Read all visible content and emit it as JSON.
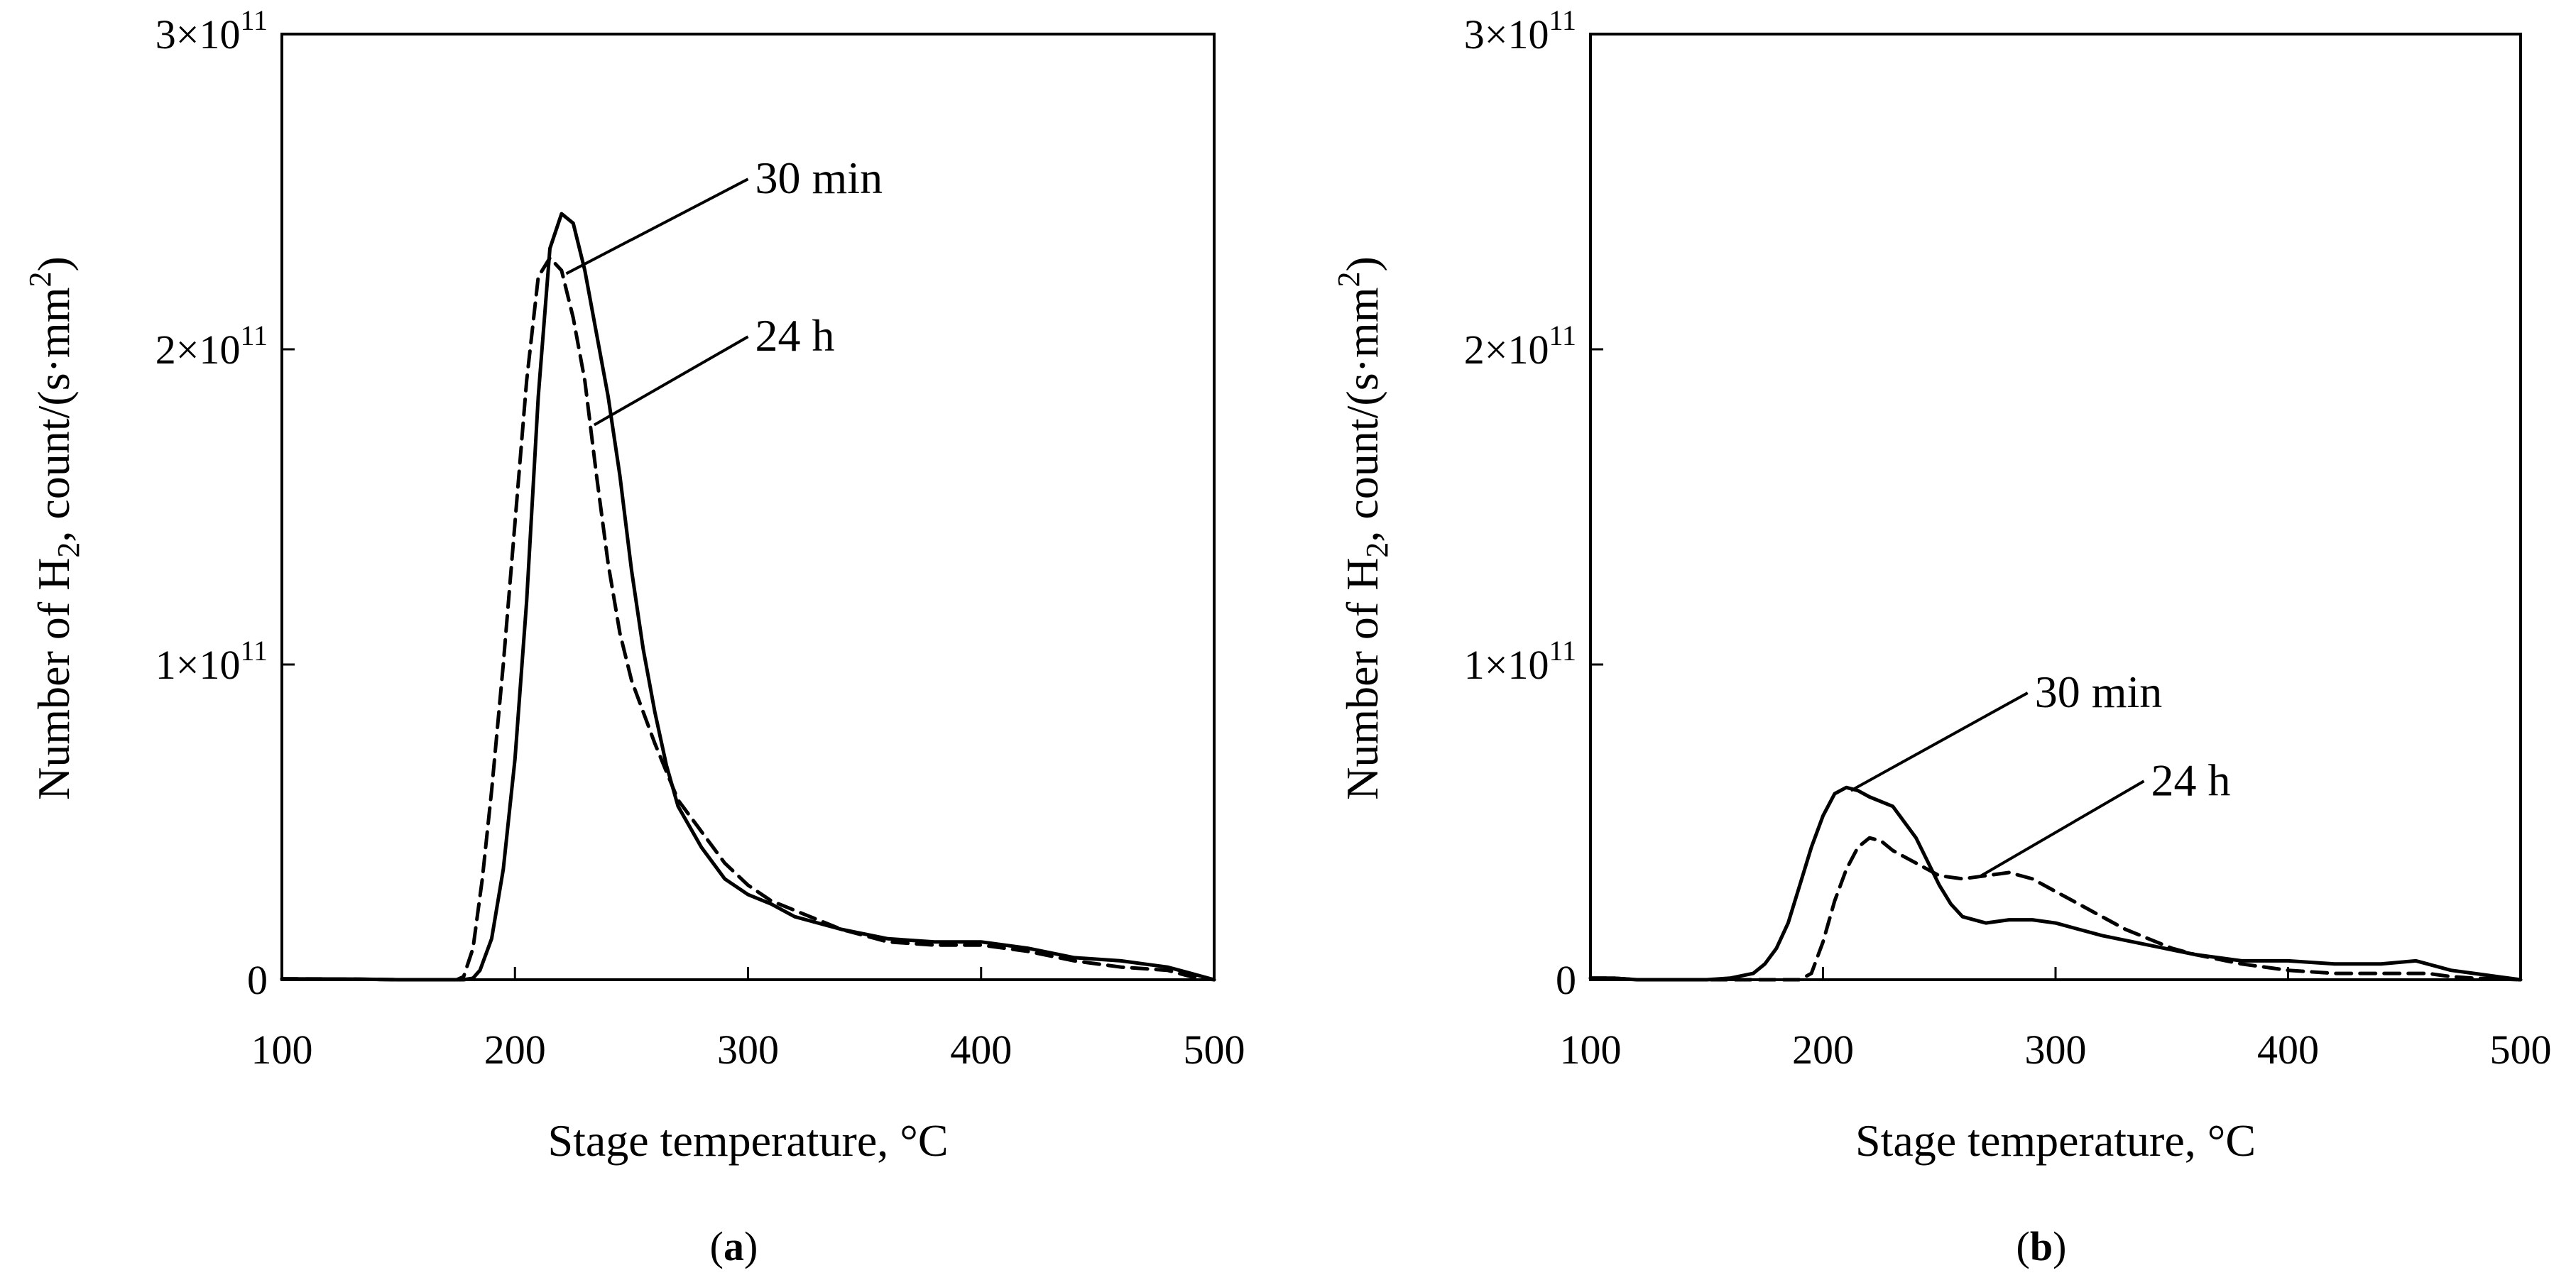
{
  "chart_data": [
    {
      "type": "line",
      "panel_label": "a",
      "xlabel": "Stage temperature, °C",
      "ylabel": "Number of H2, count/(s·mm2)",
      "xlim": [
        100,
        500
      ],
      "ylim": [
        0,
        300000000000
      ],
      "x_ticks": [
        100,
        200,
        300,
        400,
        500
      ],
      "y_ticks": [
        {
          "value": 0,
          "label": "0"
        },
        {
          "value": 100000000000,
          "label": "1×10",
          "exp": "11"
        },
        {
          "value": 200000000000,
          "label": "2×10",
          "exp": "11"
        },
        {
          "value": 300000000000,
          "label": "3×10",
          "exp": "11"
        }
      ],
      "series": [
        {
          "name": "30 min",
          "style": "solid",
          "points": [
            [
              100,
              0.3
            ],
            [
              130,
              0.2
            ],
            [
              150,
              0
            ],
            [
              178,
              0
            ],
            [
              182,
              0.5
            ],
            [
              185,
              3
            ],
            [
              190,
              13
            ],
            [
              195,
              35
            ],
            [
              200,
              70
            ],
            [
              205,
              120
            ],
            [
              210,
              185
            ],
            [
              215,
              232
            ],
            [
              220,
              243
            ],
            [
              225,
              240
            ],
            [
              230,
              225
            ],
            [
              235,
              205
            ],
            [
              240,
              185
            ],
            [
              245,
              160
            ],
            [
              250,
              130
            ],
            [
              255,
              105
            ],
            [
              260,
              85
            ],
            [
              265,
              68
            ],
            [
              270,
              55
            ],
            [
              280,
              42
            ],
            [
              290,
              32
            ],
            [
              300,
              27
            ],
            [
              310,
              24
            ],
            [
              320,
              20
            ],
            [
              340,
              16
            ],
            [
              360,
              13
            ],
            [
              380,
              12
            ],
            [
              400,
              12
            ],
            [
              420,
              10
            ],
            [
              440,
              7
            ],
            [
              460,
              6
            ],
            [
              470,
              5
            ],
            [
              480,
              4
            ],
            [
              490,
              2
            ],
            [
              500,
              0
            ]
          ],
          "annotation": {
            "text": "30 min",
            "at": [
              222,
              224
            ],
            "label_pos": [
              300,
              254
            ]
          }
        },
        {
          "name": "24 h",
          "style": "dashed",
          "points": [
            [
              100,
              0.3
            ],
            [
              130,
              0.2
            ],
            [
              150,
              0
            ],
            [
              175,
              0
            ],
            [
              178,
              1
            ],
            [
              182,
              10
            ],
            [
              186,
              32
            ],
            [
              190,
              60
            ],
            [
              195,
              100
            ],
            [
              200,
              145
            ],
            [
              205,
              190
            ],
            [
              210,
              223
            ],
            [
              215,
              229
            ],
            [
              220,
              225
            ],
            [
              225,
              210
            ],
            [
              230,
              190
            ],
            [
              235,
              160
            ],
            [
              240,
              132
            ],
            [
              245,
              110
            ],
            [
              250,
              95
            ],
            [
              255,
              85
            ],
            [
              260,
              75
            ],
            [
              265,
              66
            ],
            [
              270,
              57
            ],
            [
              280,
              47
            ],
            [
              290,
              37
            ],
            [
              300,
              30
            ],
            [
              310,
              25
            ],
            [
              320,
              22
            ],
            [
              340,
              16
            ],
            [
              360,
              12
            ],
            [
              380,
              11
            ],
            [
              400,
              11
            ],
            [
              420,
              9
            ],
            [
              440,
              6
            ],
            [
              460,
              4
            ],
            [
              480,
              3
            ],
            [
              490,
              1
            ],
            [
              500,
              0
            ]
          ],
          "annotation": {
            "text": "24 h",
            "at": [
              234,
              176
            ],
            "label_pos": [
              300,
              204
            ]
          }
        }
      ]
    },
    {
      "type": "line",
      "panel_label": "b",
      "xlabel": "Stage temperature, °C",
      "ylabel": "Number of H2, count/(s·mm2)",
      "xlim": [
        100,
        500
      ],
      "ylim": [
        0,
        300000000000
      ],
      "x_ticks": [
        100,
        200,
        300,
        400,
        500
      ],
      "y_ticks": [
        {
          "value": 0,
          "label": "0"
        },
        {
          "value": 100000000000,
          "label": "1×10",
          "exp": "11"
        },
        {
          "value": 200000000000,
          "label": "2×10",
          "exp": "11"
        },
        {
          "value": 300000000000,
          "label": "3×10",
          "exp": "11"
        }
      ],
      "series": [
        {
          "name": "30 min",
          "style": "solid",
          "points": [
            [
              100,
              0.5
            ],
            [
              110,
              0.5
            ],
            [
              120,
              0
            ],
            [
              150,
              0
            ],
            [
              160,
              0.5
            ],
            [
              170,
              2
            ],
            [
              175,
              5
            ],
            [
              180,
              10
            ],
            [
              185,
              18
            ],
            [
              190,
              30
            ],
            [
              195,
              42
            ],
            [
              200,
              52
            ],
            [
              205,
              59
            ],
            [
              210,
              61
            ],
            [
              215,
              60
            ],
            [
              220,
              58
            ],
            [
              230,
              55
            ],
            [
              240,
              45
            ],
            [
              250,
              30
            ],
            [
              255,
              24
            ],
            [
              260,
              20
            ],
            [
              270,
              18
            ],
            [
              280,
              19
            ],
            [
              290,
              19
            ],
            [
              300,
              18
            ],
            [
              310,
              16
            ],
            [
              320,
              14
            ],
            [
              340,
              11
            ],
            [
              360,
              8
            ],
            [
              380,
              6
            ],
            [
              400,
              6
            ],
            [
              420,
              5
            ],
            [
              440,
              5
            ],
            [
              455,
              6
            ],
            [
              460,
              5
            ],
            [
              470,
              3
            ],
            [
              480,
              2
            ],
            [
              490,
              1
            ],
            [
              500,
              0
            ]
          ],
          "annotation": {
            "text": "30 min",
            "at": [
              212,
              60
            ],
            "label_pos": [
              288,
              91
            ]
          }
        },
        {
          "name": "24 h",
          "style": "dashed",
          "points": [
            [
              100,
              0.5
            ],
            [
              110,
              0.5
            ],
            [
              120,
              0
            ],
            [
              190,
              0
            ],
            [
              195,
              2
            ],
            [
              200,
              12
            ],
            [
              205,
              25
            ],
            [
              210,
              35
            ],
            [
              215,
              42
            ],
            [
              220,
              45
            ],
            [
              225,
              44
            ],
            [
              230,
              41
            ],
            [
              240,
              37
            ],
            [
              250,
              33
            ],
            [
              260,
              32
            ],
            [
              270,
              33
            ],
            [
              280,
              34
            ],
            [
              290,
              32
            ],
            [
              300,
              28
            ],
            [
              310,
              24
            ],
            [
              320,
              20
            ],
            [
              330,
              16
            ],
            [
              340,
              13
            ],
            [
              350,
              10
            ],
            [
              360,
              8
            ],
            [
              380,
              5
            ],
            [
              400,
              3
            ],
            [
              420,
              2
            ],
            [
              440,
              2
            ],
            [
              460,
              2
            ],
            [
              470,
              1
            ],
            [
              480,
              0.5
            ],
            [
              500,
              0
            ]
          ],
          "annotation": {
            "text": "24 h",
            "at": [
              268,
              33
            ],
            "label_pos": [
              338,
              63
            ]
          }
        }
      ]
    }
  ]
}
